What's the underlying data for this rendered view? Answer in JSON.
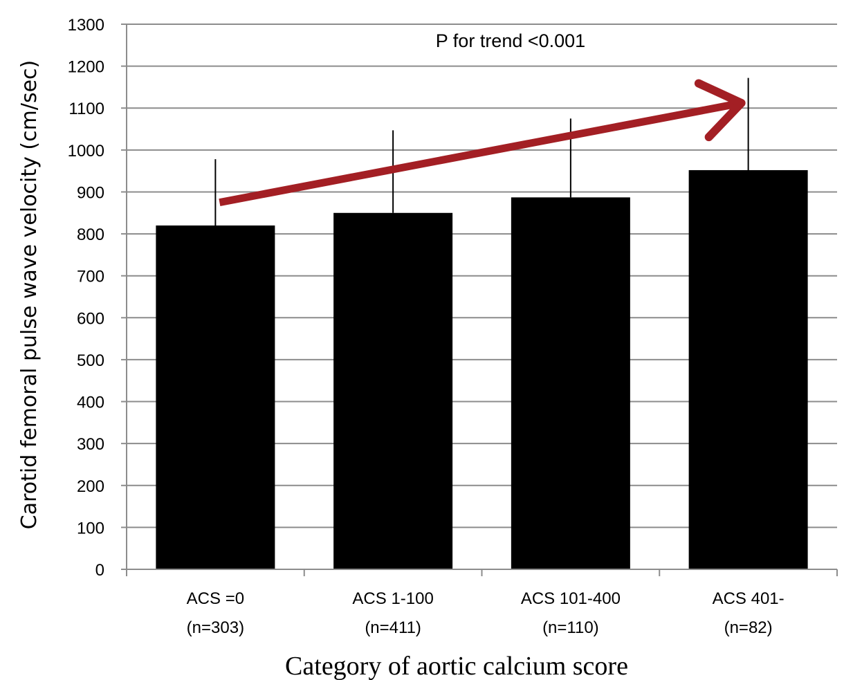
{
  "chart_data": {
    "type": "bar",
    "categories": [
      [
        "ACS =0",
        "(n=303)"
      ],
      [
        "ACS 1-100",
        "(n=411)"
      ],
      [
        "ACS 101-400",
        "(n=110)"
      ],
      [
        "ACS 401-",
        "(n=82)"
      ]
    ],
    "values": [
      820,
      850,
      887,
      952
    ],
    "error_upper": [
      978,
      1047,
      1075,
      1172
    ],
    "xlabel": "Category of aortic calcium score",
    "ylabel": "Carotid femoral pulse wave velocity (cm/sec)",
    "ylim": [
      0,
      1300
    ],
    "yticks": [
      0,
      100,
      200,
      300,
      400,
      500,
      600,
      700,
      800,
      900,
      1000,
      1100,
      1200,
      1300
    ],
    "grid": true,
    "annotation": "P for trend <0.001",
    "trend_arrow": {
      "from_category": 0,
      "to_category": 3,
      "color": "#a31f24"
    },
    "colors": {
      "bar": "#000000",
      "grid": "#8c8c8c",
      "axis": "#8c8c8c"
    }
  }
}
